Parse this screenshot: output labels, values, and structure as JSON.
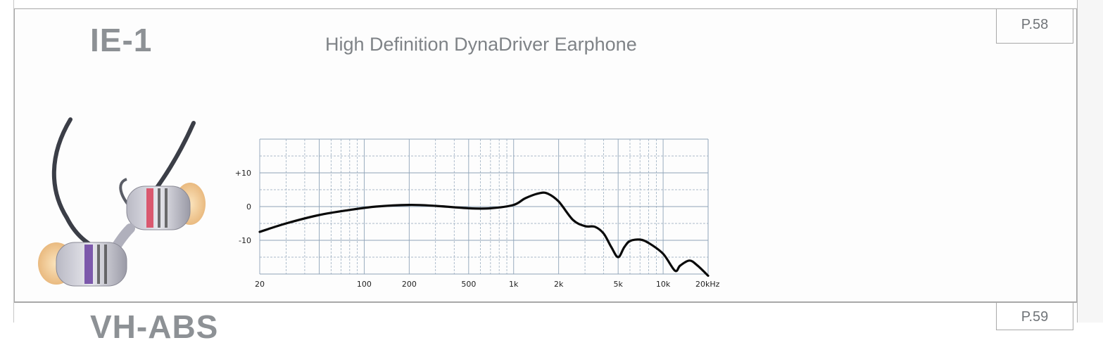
{
  "header": {
    "model": "IE-1",
    "title": "High Definition DynaDriver Earphone",
    "page": "P.58"
  },
  "next_entry": {
    "model": "VH-ABS",
    "page": "P.59"
  },
  "colors": {
    "text_grey": "#8d9195",
    "grid_blue": "#8ea3b8",
    "curve": "#0a0a0a",
    "frame": "#a8a8a8"
  },
  "product_image": {
    "icon": "in-ear-earphone-icon"
  },
  "chart_data": {
    "type": "line",
    "title": "",
    "xlabel": "",
    "ylabel": "",
    "x_scale": "log",
    "xlim": [
      20,
      20000
    ],
    "ylim": [
      -20,
      20
    ],
    "x_ticks": [
      20,
      100,
      200,
      500,
      1000,
      2000,
      5000,
      10000,
      20000
    ],
    "x_tick_labels": [
      "20",
      "100",
      "200",
      "500",
      "1k",
      "2k",
      "5k",
      "10k",
      "20kHz"
    ],
    "y_ticks": [
      10,
      0,
      -10
    ],
    "y_tick_labels": [
      "+10",
      "0",
      "-10"
    ],
    "grid": true,
    "series": [
      {
        "x": [
          20,
          30,
          50,
          80,
          120,
          200,
          300,
          500,
          700,
          1000,
          1200,
          1500,
          1700,
          2000,
          2500,
          3000,
          3500,
          4000,
          4500,
          5000,
          5500,
          6000,
          7000,
          8000,
          10000,
          12000,
          13000,
          15000,
          17000,
          20000
        ],
        "y": [
          -7.5,
          -5,
          -2.5,
          -1,
          0,
          0.5,
          0.2,
          -0.5,
          -0.5,
          0.5,
          2.5,
          4,
          3.8,
          1.5,
          -4,
          -5.8,
          -6,
          -8,
          -12,
          -15,
          -12,
          -10.2,
          -9.8,
          -10.8,
          -14,
          -19,
          -17.5,
          -16,
          -17.5,
          -20.5
        ]
      }
    ]
  }
}
